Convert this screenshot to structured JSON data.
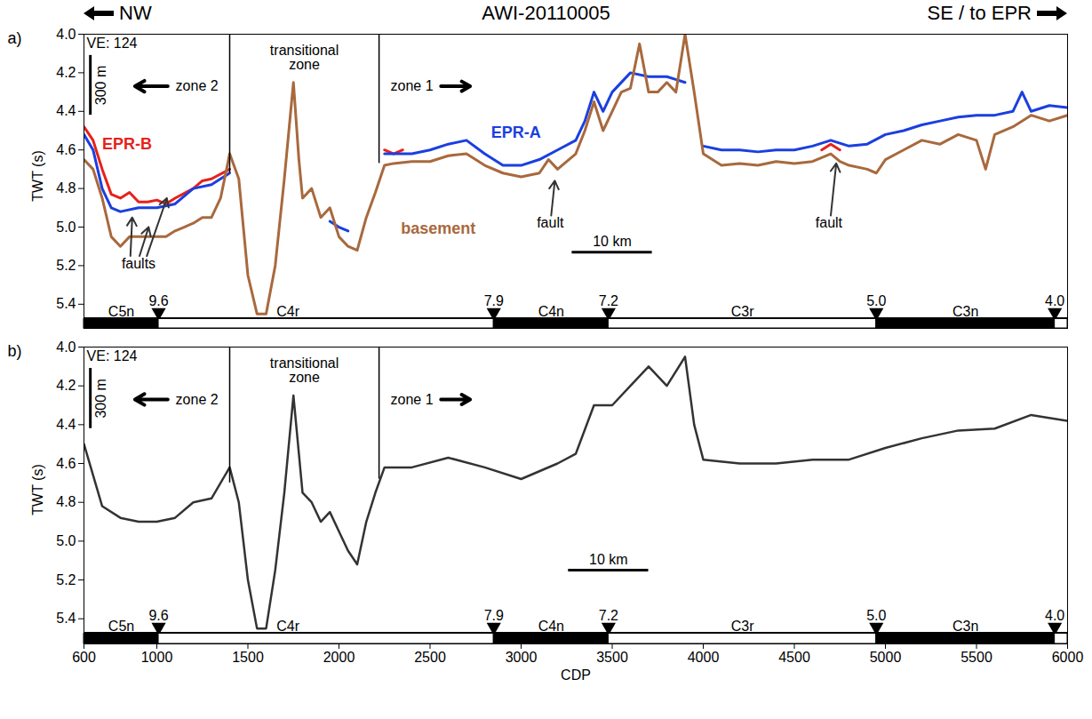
{
  "chart_data": [
    {
      "type": "line",
      "panel": "a)",
      "title": "AWI-20110005",
      "direction": {
        "left": "NW",
        "right": "SE / to EPR"
      },
      "y_label": "TWT (s)",
      "xlim": [
        600,
        6000
      ],
      "xticks": [
        600,
        1000,
        1500,
        2000,
        2500,
        3000,
        3500,
        4000,
        4500,
        5000,
        5500,
        6000
      ],
      "ylim": [
        4.0,
        5.47
      ],
      "yticks": [
        {
          "value": 4.0,
          "label": "4.0"
        },
        {
          "value": 4.2,
          "label": "4.2"
        },
        {
          "value": 4.4,
          "label": "4.4"
        },
        {
          "value": 4.6,
          "label": "4.6"
        },
        {
          "value": 4.8,
          "label": "4.8"
        },
        {
          "value": 5.0,
          "label": "5.0"
        },
        {
          "value": 5.2,
          "label": "5.2"
        },
        {
          "value": 5.4,
          "label": "5.4"
        }
      ],
      "tick_labels": "y",
      "series": [
        {
          "name": "EPR-B",
          "color": "#e8201a",
          "label_at": [
            700,
            4.57
          ],
          "x": [
            600,
            650,
            700,
            750,
            800,
            850,
            900,
            950,
            1000,
            1050,
            1100,
            1200,
            1250,
            1300,
            1400,
            1450,
            2250,
            2300,
            2350,
            2400,
            4650,
            4700,
            4750
          ],
          "values": [
            4.48,
            4.55,
            4.7,
            4.83,
            4.85,
            4.82,
            4.87,
            4.87,
            4.86,
            4.88,
            4.85,
            4.8,
            4.76,
            4.75,
            4.7,
            null,
            4.6,
            4.62,
            4.6,
            null,
            4.6,
            4.57,
            4.6
          ]
        },
        {
          "name": "EPR-A",
          "color": "#1a3fe0",
          "label_at": [
            2835,
            4.51
          ],
          "x": [
            600,
            650,
            700,
            750,
            800,
            900,
            1000,
            1100,
            1200,
            1300,
            1400,
            1450,
            1950,
            2000,
            2050,
            2100,
            2250,
            2400,
            2500,
            2600,
            2700,
            2800,
            2900,
            3000,
            3100,
            3200,
            3300,
            3350,
            3400,
            3450,
            3500,
            3600,
            3700,
            3800,
            3900,
            3950,
            4000,
            4100,
            4200,
            4300,
            4400,
            4500,
            4600,
            4700,
            4800,
            4900,
            5000,
            5100,
            5200,
            5300,
            5400,
            5500,
            5600,
            5700,
            5750,
            5800,
            5900,
            6000
          ],
          "values": [
            4.52,
            4.6,
            4.8,
            4.9,
            4.92,
            4.9,
            4.9,
            4.88,
            4.8,
            4.78,
            4.72,
            null,
            4.97,
            5.0,
            5.02,
            null,
            4.62,
            4.62,
            4.6,
            4.57,
            4.55,
            4.62,
            4.68,
            4.68,
            4.65,
            4.6,
            4.55,
            4.45,
            4.3,
            4.4,
            4.3,
            4.2,
            4.22,
            4.22,
            4.25,
            null,
            4.58,
            4.6,
            4.6,
            4.61,
            4.6,
            4.6,
            4.58,
            4.55,
            4.58,
            4.57,
            4.52,
            4.5,
            4.47,
            4.45,
            4.43,
            4.42,
            4.42,
            4.4,
            4.3,
            4.4,
            4.37,
            4.38
          ]
        },
        {
          "name": "basement",
          "color": "#a8693d",
          "label_at": [
            2340,
            5.01
          ],
          "x": [
            600,
            650,
            700,
            750,
            800,
            850,
            900,
            950,
            1000,
            1050,
            1100,
            1150,
            1200,
            1250,
            1300,
            1350,
            1400,
            1450,
            1500,
            1550,
            1600,
            1650,
            1700,
            1750,
            1780,
            1800,
            1850,
            1900,
            1950,
            2000,
            2050,
            2100,
            2150,
            2200,
            2250,
            2300,
            2400,
            2500,
            2600,
            2700,
            2800,
            2900,
            3000,
            3100,
            3150,
            3200,
            3300,
            3350,
            3400,
            3450,
            3500,
            3550,
            3600,
            3650,
            3700,
            3750,
            3800,
            3850,
            3900,
            3950,
            4000,
            4100,
            4200,
            4300,
            4400,
            4500,
            4600,
            4700,
            4750,
            4800,
            4900,
            4950,
            5000,
            5100,
            5200,
            5300,
            5400,
            5500,
            5550,
            5600,
            5700,
            5800,
            5900,
            6000
          ],
          "values": [
            4.65,
            4.7,
            4.85,
            5.05,
            5.1,
            5.05,
            5.05,
            5.05,
            5.05,
            5.05,
            5.02,
            5.0,
            4.98,
            4.95,
            4.95,
            4.85,
            4.62,
            4.75,
            5.25,
            5.45,
            5.45,
            5.2,
            4.75,
            4.25,
            4.65,
            4.85,
            4.8,
            4.95,
            4.9,
            5.05,
            5.1,
            5.12,
            4.95,
            4.82,
            4.68,
            4.67,
            4.66,
            4.66,
            4.63,
            4.62,
            4.68,
            4.72,
            4.74,
            4.72,
            4.65,
            4.7,
            4.62,
            4.5,
            4.35,
            4.5,
            4.4,
            4.3,
            4.28,
            4.05,
            4.3,
            4.3,
            4.25,
            4.3,
            4.0,
            4.3,
            4.62,
            4.68,
            4.67,
            4.68,
            4.66,
            4.67,
            4.66,
            4.62,
            4.66,
            4.68,
            4.7,
            4.72,
            4.65,
            4.6,
            4.55,
            4.57,
            4.52,
            4.55,
            4.7,
            4.52,
            4.48,
            4.42,
            4.45,
            4.42
          ]
        }
      ],
      "boundaries": [
        {
          "x": 1400,
          "y2": 4.72
        },
        {
          "x": 2220,
          "y2": 4.67
        }
      ],
      "ve": {
        "text": "VE: 124",
        "x": 615,
        "y": 4.02
      },
      "vertical_scale": {
        "label": "300 m",
        "x": 635,
        "y1": 4.11,
        "y2": 4.42
      },
      "scale_bar": {
        "label": "10 km",
        "x1": 3280,
        "x2": 3720,
        "y": 5.13
      },
      "annotations": [
        {
          "text": "zone 2",
          "x": 1220,
          "y": 4.27,
          "arrows": [
            [
              1060,
              4.27,
              880,
              4.27
            ]
          ]
        },
        {
          "text": "transitional zone",
          "x": 1810,
          "y": 4.12
        },
        {
          "text": "zone 1",
          "x": 2400,
          "y": 4.27,
          "arrows": [
            [
              2560,
              4.27,
              2720,
              4.27
            ]
          ]
        },
        {
          "text": "faults",
          "x": 900,
          "y": 5.19,
          "arrows": [
            [
              855,
              5.15,
              865,
              4.95
            ],
            [
              905,
              5.15,
              955,
              5.0
            ],
            [
              945,
              5.15,
              1055,
              4.85
            ]
          ]
        },
        {
          "text": "fault",
          "x": 3160,
          "y": 4.98,
          "arrows": [
            [
              3165,
              4.94,
              3185,
              4.76
            ]
          ]
        },
        {
          "text": "fault",
          "x": 4690,
          "y": 4.98,
          "arrows": [
            [
              4700,
              4.94,
              4730,
              4.67
            ]
          ]
        }
      ],
      "ages": [
        {
          "x": 1010,
          "label": "9.6"
        },
        {
          "x": 2850,
          "label": "7.9"
        },
        {
          "x": 3480,
          "label": "7.2"
        },
        {
          "x": 4950,
          "label": "5.0"
        },
        {
          "x": 5930,
          "label": "4.0"
        }
      ],
      "chrons": [
        {
          "name": "C5n",
          "x1": 600,
          "x2": 1010,
          "label_x": 805,
          "color": "#000000"
        },
        {
          "name": "C4r",
          "x1": 1010,
          "x2": 2850,
          "label_x": 1720,
          "color": "#ffffff"
        },
        {
          "name": "C4n",
          "x1": 2850,
          "x2": 3480,
          "label_x": 3165,
          "color": "#000000"
        },
        {
          "name": "C3r",
          "x1": 3480,
          "x2": 4950,
          "label_x": 4215,
          "color": "#ffffff"
        },
        {
          "name": "C3n",
          "x1": 4950,
          "x2": 5930,
          "label_x": 5440,
          "color": "#000000"
        },
        {
          "x1": 5930,
          "x2": 6000,
          "color": "#ffffff"
        }
      ]
    },
    {
      "type": "line",
      "panel": "b)",
      "y_label": "TWT (s)",
      "x_label": "CDP",
      "xlim": [
        600,
        6000
      ],
      "xticks": [
        600,
        1000,
        1500,
        2000,
        2500,
        3000,
        3500,
        4000,
        4500,
        5000,
        5500,
        6000
      ],
      "ylim": [
        4.0,
        5.47
      ],
      "yticks": [
        {
          "value": 4.0,
          "label": "4.0"
        },
        {
          "value": 4.2,
          "label": "4.2"
        },
        {
          "value": 4.4,
          "label": "4.4"
        },
        {
          "value": 4.6,
          "label": "4.6"
        },
        {
          "value": 4.8,
          "label": "4.8"
        },
        {
          "value": 5.0,
          "label": "5.0"
        },
        {
          "value": 5.2,
          "label": "5.2"
        },
        {
          "value": 5.4,
          "label": "5.4"
        }
      ],
      "series": [
        {
          "color": "#333333",
          "x": [
            600,
            700,
            800,
            900,
            1000,
            1100,
            1200,
            1300,
            1400,
            1450,
            1500,
            1550,
            1600,
            1650,
            1700,
            1750,
            1800,
            1850,
            1900,
            1950,
            2000,
            2050,
            2100,
            2150,
            2200,
            2250,
            2400,
            2600,
            2800,
            3000,
            3200,
            3300,
            3400,
            3500,
            3600,
            3700,
            3800,
            3900,
            3950,
            4000,
            4200,
            4400,
            4600,
            4800,
            5000,
            5200,
            5400,
            5600,
            5800,
            6000
          ],
          "values": [
            4.5,
            4.82,
            4.88,
            4.9,
            4.9,
            4.88,
            4.8,
            4.78,
            4.62,
            4.8,
            5.2,
            5.45,
            5.45,
            5.15,
            4.75,
            4.25,
            4.75,
            4.8,
            4.9,
            4.85,
            4.95,
            5.05,
            5.12,
            4.9,
            4.75,
            4.62,
            4.62,
            4.57,
            4.62,
            4.68,
            4.6,
            4.55,
            4.3,
            4.3,
            4.2,
            4.1,
            4.2,
            4.05,
            4.4,
            4.58,
            4.6,
            4.6,
            4.58,
            4.58,
            4.52,
            4.47,
            4.43,
            4.42,
            4.35,
            4.38
          ]
        }
      ],
      "boundaries": [
        {
          "x": 1400,
          "y2": 4.7
        },
        {
          "x": 2220,
          "y2": 4.68
        }
      ],
      "ve": {
        "text": "VE: 124",
        "x": 615,
        "y": 4.02
      },
      "vertical_scale": {
        "label": "300 m",
        "x": 635,
        "y1": 4.11,
        "y2": 4.42
      },
      "scale_bar": {
        "label": "10 km",
        "x1": 3260,
        "x2": 3700,
        "y": 5.15
      },
      "annotations": [
        {
          "text": "zone 2",
          "x": 1220,
          "y": 4.27,
          "arrows": [
            [
              1060,
              4.27,
              880,
              4.27
            ]
          ]
        },
        {
          "text": "transitional zone",
          "x": 1810,
          "y": 4.12
        },
        {
          "text": "zone 1",
          "x": 2400,
          "y": 4.27,
          "arrows": [
            [
              2560,
              4.27,
              2720,
              4.27
            ]
          ]
        }
      ],
      "ages": [
        {
          "x": 1010,
          "label": "9.6"
        },
        {
          "x": 2850,
          "label": "7.9"
        },
        {
          "x": 3480,
          "label": "7.2"
        },
        {
          "x": 4950,
          "label": "5.0"
        },
        {
          "x": 5930,
          "label": "4.0"
        }
      ],
      "chrons": [
        {
          "name": "C5n",
          "x1": 600,
          "x2": 1010,
          "label_x": 805,
          "color": "#000000"
        },
        {
          "name": "C4r",
          "x1": 1010,
          "x2": 2850,
          "label_x": 1720,
          "color": "#ffffff"
        },
        {
          "name": "C4n",
          "x1": 2850,
          "x2": 3480,
          "label_x": 3165,
          "color": "#000000"
        },
        {
          "name": "C3r",
          "x1": 3480,
          "x2": 4950,
          "label_x": 4215,
          "color": "#ffffff"
        },
        {
          "name": "C3n",
          "x1": 4950,
          "x2": 5930,
          "label_x": 5440,
          "color": "#000000"
        },
        {
          "x1": 5930,
          "x2": 6000,
          "color": "#ffffff"
        }
      ]
    }
  ]
}
